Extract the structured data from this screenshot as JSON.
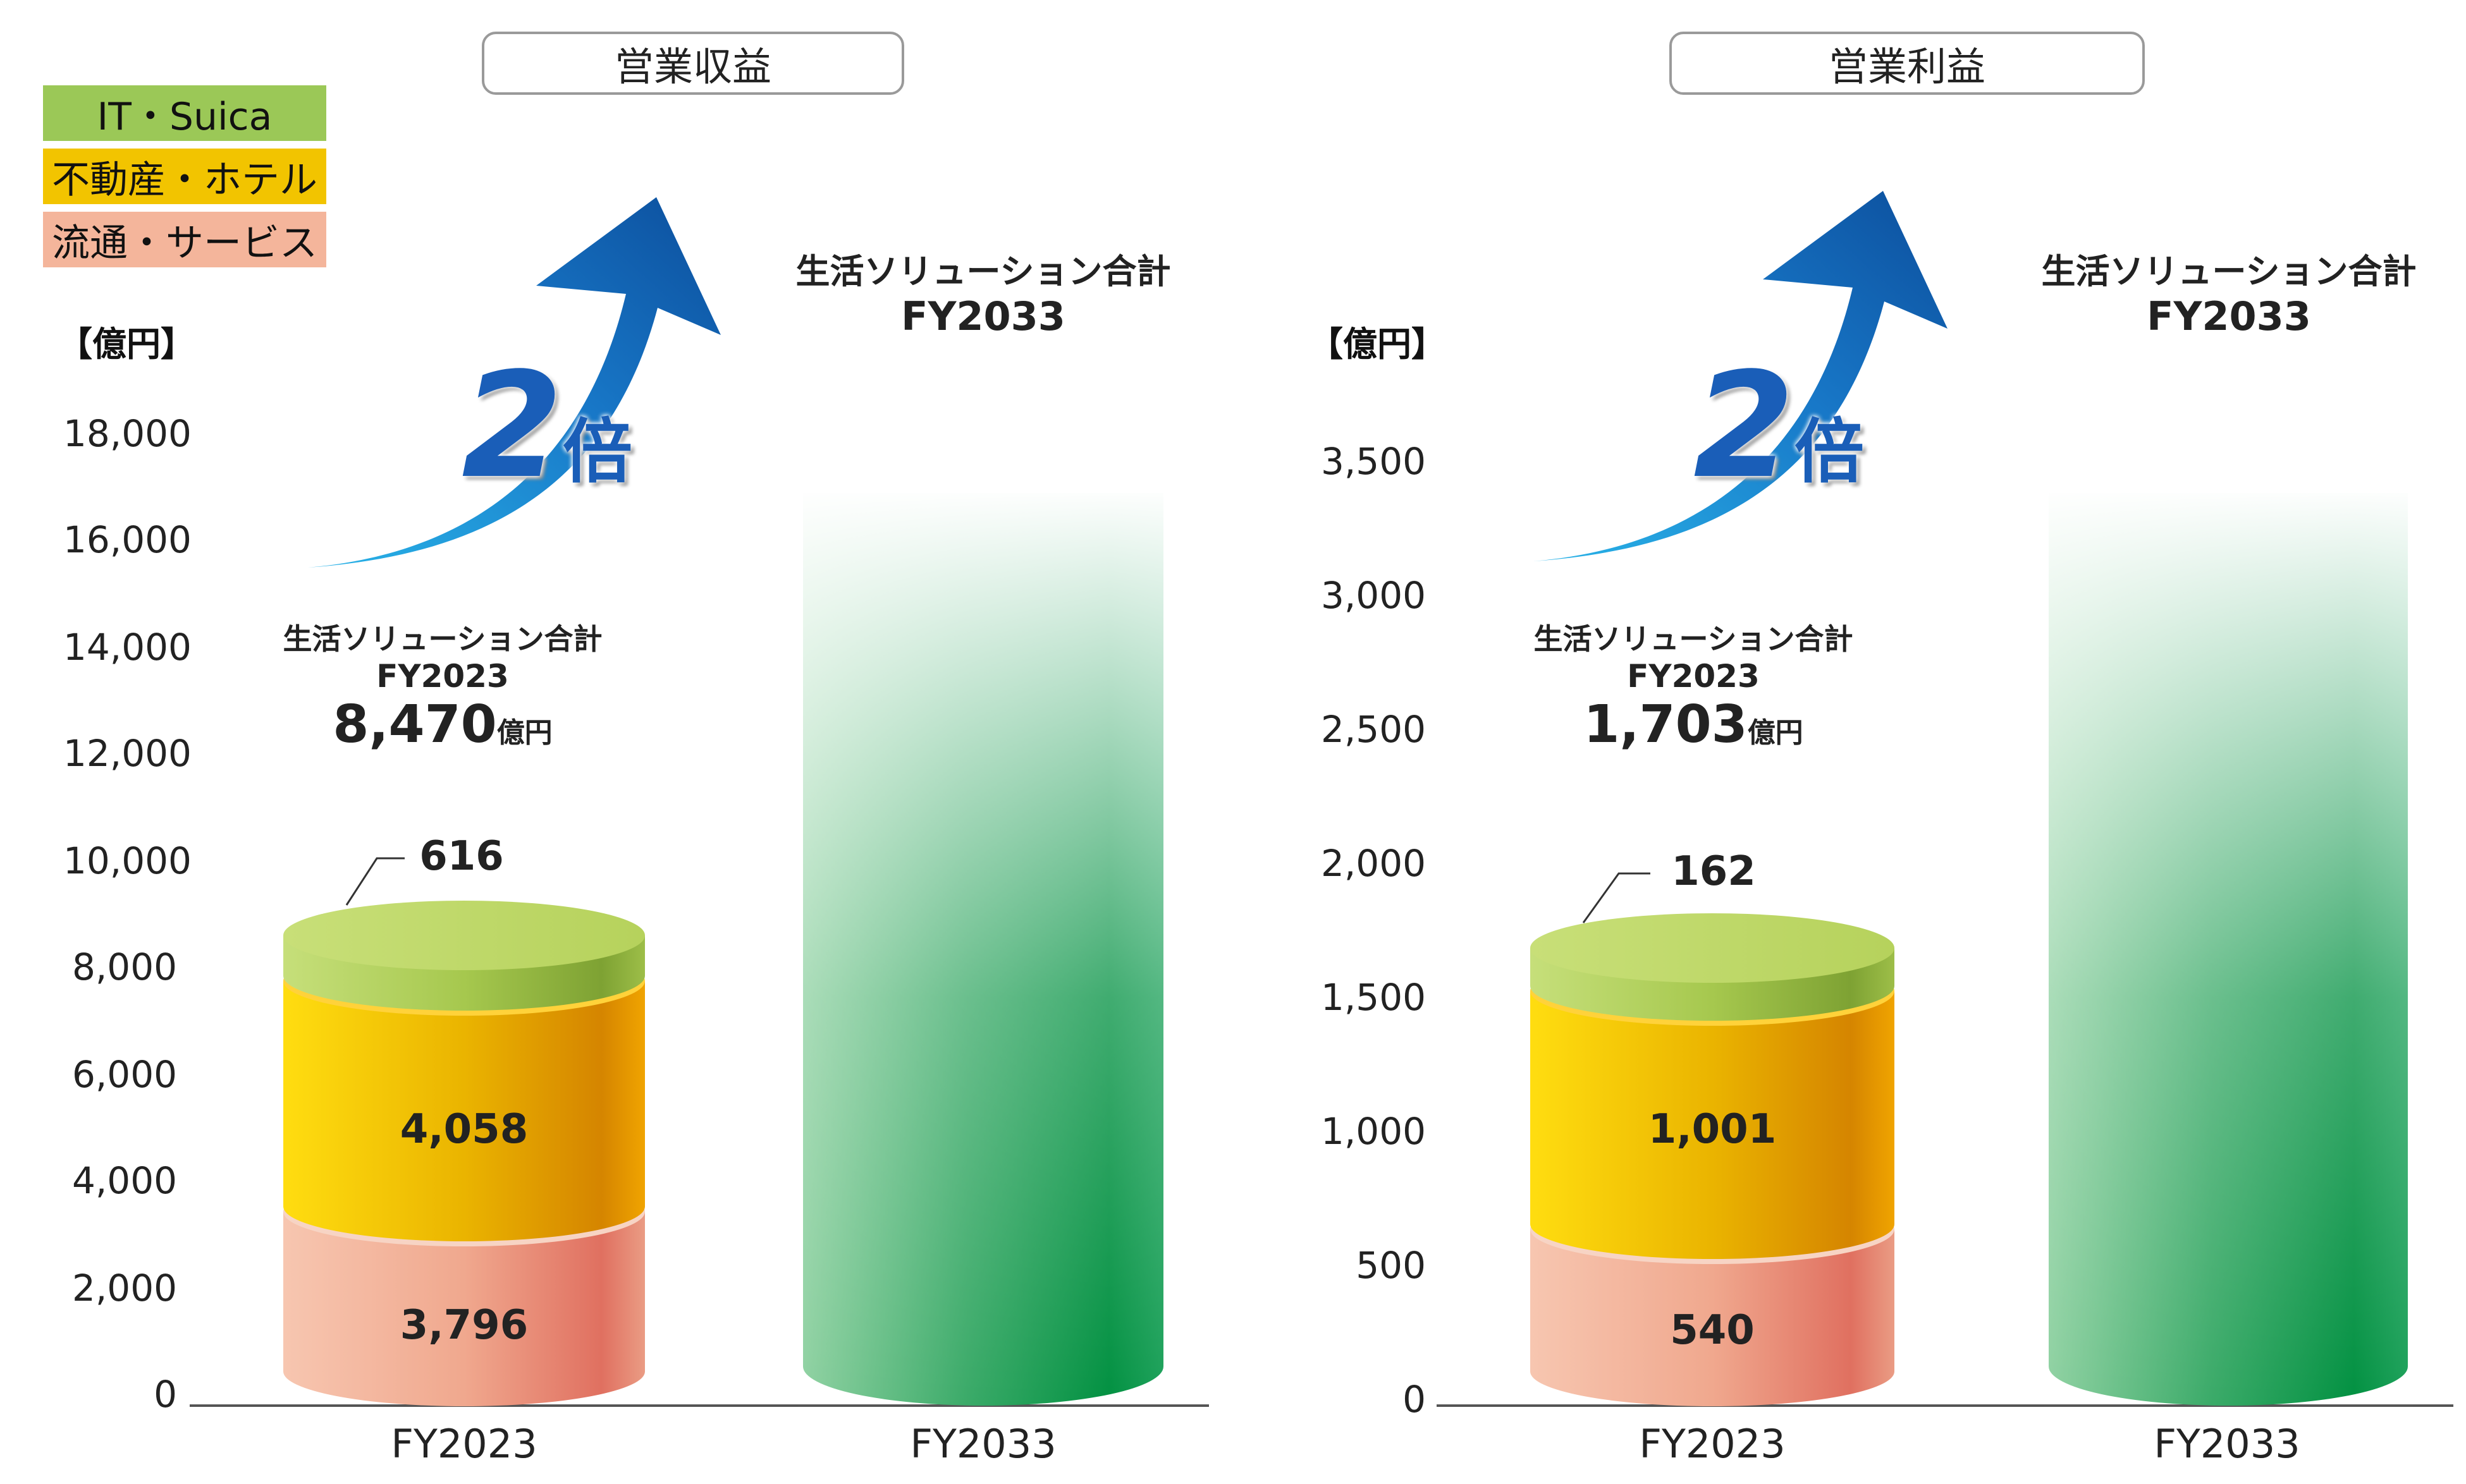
{
  "legend": [
    {
      "label": "IT・Suica",
      "color": "#9bc857"
    },
    {
      "label": "不動産・ホテル",
      "color": "#f2c400"
    },
    {
      "label": "流通・サービス",
      "color": "#f4b59b"
    }
  ],
  "panels": [
    {
      "title": "営業収益",
      "unit": "【億円】",
      "yticks": [
        "18,000",
        "16,000",
        "14,000",
        "12,000",
        "10,000",
        "8,000",
        "6,000",
        "4,000",
        "2,000",
        "0"
      ],
      "multiplier": {
        "number": "2",
        "suffix": "倍"
      },
      "current": {
        "line1": "生活ソリューション合計",
        "line2": "FY2023",
        "value": "8,470",
        "unit": "億円"
      },
      "target": {
        "line1": "生活ソリューション合計",
        "line2": "FY2033"
      },
      "segment_labels": {
        "it": "616",
        "real_estate": "4,058",
        "retail": "3,796"
      },
      "xlabels": [
        "FY2023",
        "FY2033"
      ]
    },
    {
      "title": "営業利益",
      "unit": "【億円】",
      "yticks": [
        "3,500",
        "3,000",
        "2,500",
        "2,000",
        "1,500",
        "1,000",
        "500",
        "0"
      ],
      "multiplier": {
        "number": "2",
        "suffix": "倍"
      },
      "current": {
        "line1": "生活ソリューション合計",
        "line2": "FY2023",
        "value": "1,703",
        "unit": "億円"
      },
      "target": {
        "line1": "生活ソリューション合計",
        "line2": "FY2033"
      },
      "segment_labels": {
        "it": "162",
        "real_estate": "1,001",
        "retail": "540"
      },
      "xlabels": [
        "FY2023",
        "FY2033"
      ]
    }
  ],
  "chart_data": [
    {
      "type": "bar",
      "title": "営業収益",
      "ylabel": "【億円】",
      "ylim": [
        0,
        18000
      ],
      "categories": [
        "FY2023",
        "FY2033"
      ],
      "series": [
        {
          "name": "流通・サービス",
          "values": [
            3796,
            null
          ]
        },
        {
          "name": "不動産・ホテル",
          "values": [
            4058,
            null
          ]
        },
        {
          "name": "IT・Suica",
          "values": [
            616,
            null
          ]
        }
      ],
      "totals": [
        8470,
        16940
      ],
      "annotation": "2倍"
    },
    {
      "type": "bar",
      "title": "営業利益",
      "ylabel": "【億円】",
      "ylim": [
        0,
        3500
      ],
      "categories": [
        "FY2023",
        "FY2033"
      ],
      "series": [
        {
          "name": "流通・サービス",
          "values": [
            540,
            null
          ]
        },
        {
          "name": "不動産・ホテル",
          "values": [
            1001,
            null
          ]
        },
        {
          "name": "IT・Suica",
          "values": [
            162,
            null
          ]
        }
      ],
      "totals": [
        1703,
        3406
      ],
      "annotation": "2倍"
    }
  ]
}
